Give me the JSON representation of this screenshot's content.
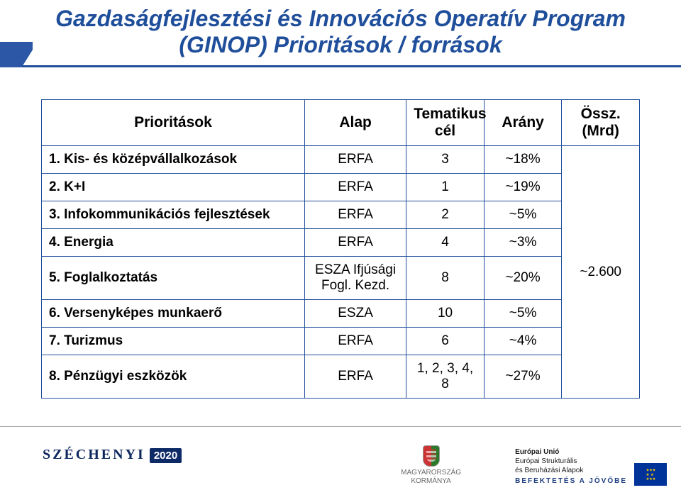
{
  "title": {
    "line1": "Gazdaságfejlesztési és Innovációs Operatív Program",
    "line2": "(GINOP) Prioritások / források",
    "color": "#1f4e9b",
    "fontsize_pt": 30,
    "underline_color": "#1f4e9b"
  },
  "table": {
    "border_color": "#1f4e9b",
    "header_fontsize_pt": 20,
    "body_fontsize_pt": 19,
    "columns": [
      {
        "key": "prio",
        "label": "Prioritások",
        "align": "center"
      },
      {
        "key": "alap",
        "label": "Alap",
        "align": "center"
      },
      {
        "key": "tcel",
        "label": "Tematikus cél",
        "align": "center"
      },
      {
        "key": "arany",
        "label": "Arány",
        "align": "center"
      },
      {
        "key": "ossz",
        "label": "Össz. (Mrd)",
        "align": "center"
      }
    ],
    "rows": [
      {
        "prio": "1. Kis- és középvállalkozások",
        "prio_bold": true,
        "alap": "ERFA",
        "tcel": "3",
        "arany": "~18%"
      },
      {
        "prio": "2. K+I",
        "prio_bold": true,
        "alap": "ERFA",
        "tcel": "1",
        "arany": "~19%"
      },
      {
        "prio": "3. Infokommunikációs fejlesztések",
        "prio_bold": true,
        "alap": "ERFA",
        "tcel": "2",
        "arany": "~5%"
      },
      {
        "prio": "4. Energia",
        "prio_bold": true,
        "alap": "ERFA",
        "tcel": "4",
        "arany": "~3%"
      },
      {
        "prio": "5. Foglalkoztatás",
        "prio_bold": true,
        "alap": "ESZA Ifjúsági Fogl. Kezd.",
        "tcel": "8",
        "arany": "~20%"
      },
      {
        "prio": "6. Versenyképes munkaerő",
        "prio_bold": true,
        "alap": "ESZA",
        "tcel": "10",
        "arany": "~5%"
      },
      {
        "prio": "7. Turizmus",
        "prio_bold": true,
        "alap": "ERFA",
        "tcel": "6",
        "arany": "~4%"
      },
      {
        "prio": "8. Pénzügyi eszközök",
        "prio_bold": true,
        "alap": "ERFA",
        "tcel": "1, 2, 3, 4, 8",
        "arany": "~27%"
      }
    ],
    "ossz_value": "~2.600"
  },
  "footer": {
    "szechenyi_label": "SZÉCHENYI",
    "szechenyi_year": "2020",
    "szechenyi_color": "#0d275d",
    "szechenyi_fontsize_pt": 18,
    "gov_line1": "MAGYARORSZÁG",
    "gov_line2": "KORMÁNYA",
    "eu_line1": "Európai Unió",
    "eu_line2": "Európai Strukturális",
    "eu_line3": "és Beruházási Alapok",
    "tagline": "BEFEKTETÉS A JÖVŐBE"
  },
  "colors": {
    "brand_blue": "#1f4e9b",
    "dark_navy": "#0d275d",
    "eu_blue": "#003399",
    "eu_gold": "#ffcc00",
    "background": "#ffffff"
  }
}
